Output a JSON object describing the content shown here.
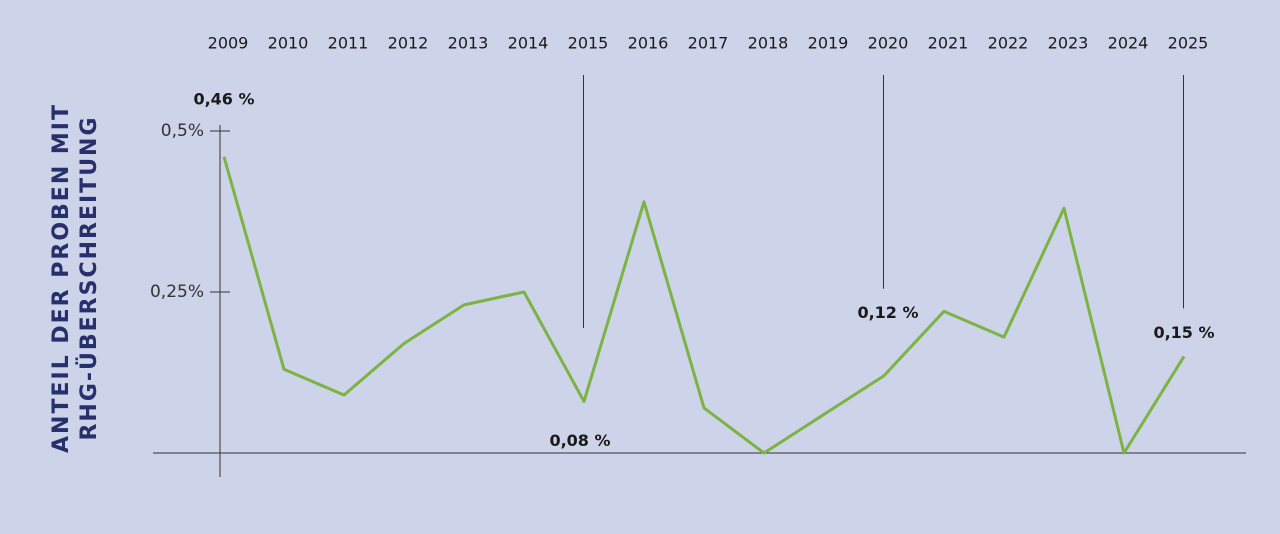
{
  "chart_data": {
    "type": "line",
    "ylabel": [
      "ANTEIL DER PROBEN MIT",
      "RHG-ÜBERSCHREITUNG"
    ],
    "categories": [
      "2009",
      "2010",
      "2011",
      "2012",
      "2013",
      "2014",
      "2015",
      "2016",
      "2017",
      "2018",
      "2019",
      "2020",
      "2021",
      "2022",
      "2023",
      "2024",
      "2025"
    ],
    "values": [
      0.46,
      0.13,
      0.09,
      0.17,
      0.23,
      0.25,
      0.08,
      0.39,
      0.07,
      0,
      0.06,
      0.12,
      0.22,
      0.18,
      0.38,
      0,
      0.15
    ],
    "value_labels": [
      "0,46 %",
      null,
      null,
      null,
      null,
      null,
      "0,08 %",
      null,
      null,
      null,
      null,
      "0,12 %",
      null,
      null,
      null,
      null,
      "0,15 %"
    ],
    "color": "#7cb342",
    "ylim": [
      0,
      0.5
    ],
    "yticks": [
      {
        "value": 0.25,
        "label": "0,25%"
      },
      {
        "value": 0.5,
        "label": "0,5%"
      }
    ]
  }
}
